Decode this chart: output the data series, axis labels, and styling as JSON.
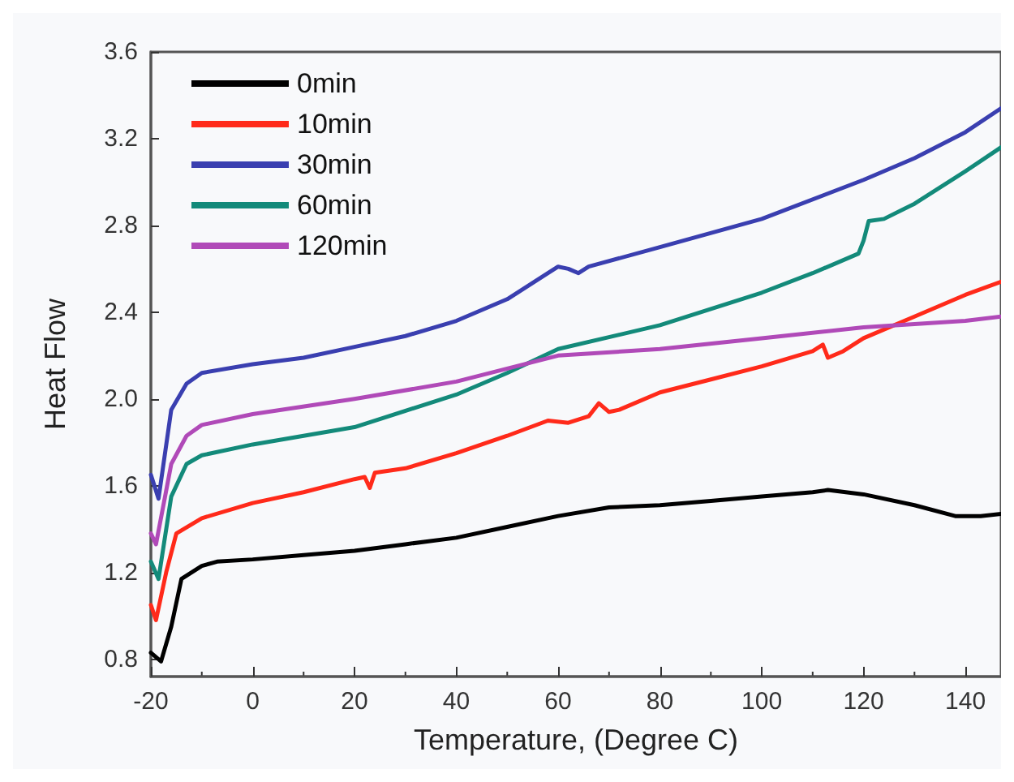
{
  "chart_data": {
    "type": "line",
    "xlabel": "Temperature, (Degree C)",
    "ylabel": "Heat Flow",
    "xlim": [
      -20,
      147
    ],
    "ylim": [
      0.72,
      3.6
    ],
    "xticks": [
      -20,
      0,
      20,
      40,
      60,
      80,
      100,
      120,
      140
    ],
    "yticks": [
      0.8,
      1.2,
      1.6,
      {
        "value": 2,
        "label": "2.0"
      },
      2.4,
      2.8,
      3.2,
      3.6
    ],
    "grid": false,
    "legend": "top left",
    "marker": "none",
    "line_style": "solid",
    "series": [
      {
        "name": "0min",
        "color": "#000000",
        "x": [
          -20,
          -18,
          -16,
          -14,
          -10,
          -7,
          0,
          10,
          20,
          30,
          40,
          50,
          60,
          70,
          80,
          90,
          100,
          110,
          113,
          120,
          130,
          138,
          143,
          147
        ],
        "values": [
          0.83,
          0.79,
          0.95,
          1.17,
          1.23,
          1.25,
          1.26,
          1.28,
          1.3,
          1.33,
          1.36,
          1.41,
          1.46,
          1.5,
          1.51,
          1.53,
          1.55,
          1.57,
          1.58,
          1.56,
          1.51,
          1.46,
          1.46,
          1.47
        ]
      },
      {
        "name": "10min",
        "color": "#ff2a1a",
        "x": [
          -20,
          -19,
          -17,
          -15,
          -10,
          0,
          10,
          20,
          22,
          23,
          24,
          30,
          40,
          50,
          58,
          62,
          66,
          68,
          70,
          72,
          80,
          90,
          100,
          110,
          112,
          113,
          116,
          120,
          130,
          140,
          147
        ],
        "values": [
          1.05,
          0.98,
          1.2,
          1.38,
          1.45,
          1.52,
          1.57,
          1.63,
          1.64,
          1.59,
          1.66,
          1.68,
          1.75,
          1.83,
          1.9,
          1.89,
          1.92,
          1.98,
          1.94,
          1.95,
          2.03,
          2.09,
          2.15,
          2.22,
          2.25,
          2.19,
          2.22,
          2.28,
          2.38,
          2.48,
          2.54
        ]
      },
      {
        "name": "30min",
        "color": "#3a3fb0",
        "x": [
          -20,
          -18.5,
          -16,
          -13,
          -10,
          0,
          10,
          20,
          30,
          40,
          50,
          58,
          60,
          62,
          64,
          66,
          80,
          100,
          120,
          130,
          140,
          147
        ],
        "values": [
          1.65,
          1.54,
          1.95,
          2.07,
          2.12,
          2.16,
          2.19,
          2.24,
          2.29,
          2.36,
          2.46,
          2.58,
          2.61,
          2.6,
          2.58,
          2.61,
          2.7,
          2.83,
          3.01,
          3.11,
          3.23,
          3.34
        ]
      },
      {
        "name": "60min",
        "color": "#138a7a",
        "x": [
          -20,
          -18.5,
          -16,
          -13,
          -10,
          0,
          20,
          40,
          50,
          60,
          80,
          100,
          110,
          119,
          120,
          121,
          124,
          130,
          140,
          147
        ],
        "values": [
          1.25,
          1.17,
          1.55,
          1.7,
          1.74,
          1.79,
          1.87,
          2.02,
          2.12,
          2.23,
          2.34,
          2.49,
          2.58,
          2.67,
          2.73,
          2.82,
          2.83,
          2.9,
          3.05,
          3.16
        ]
      },
      {
        "name": "120min",
        "color": "#b04ab8",
        "x": [
          -20,
          -19,
          -16,
          -13,
          -10,
          0,
          20,
          40,
          50,
          60,
          80,
          100,
          120,
          140,
          147
        ],
        "values": [
          1.38,
          1.33,
          1.7,
          1.83,
          1.88,
          1.93,
          2.0,
          2.08,
          2.14,
          2.2,
          2.23,
          2.28,
          2.33,
          2.36,
          2.38
        ]
      }
    ]
  }
}
